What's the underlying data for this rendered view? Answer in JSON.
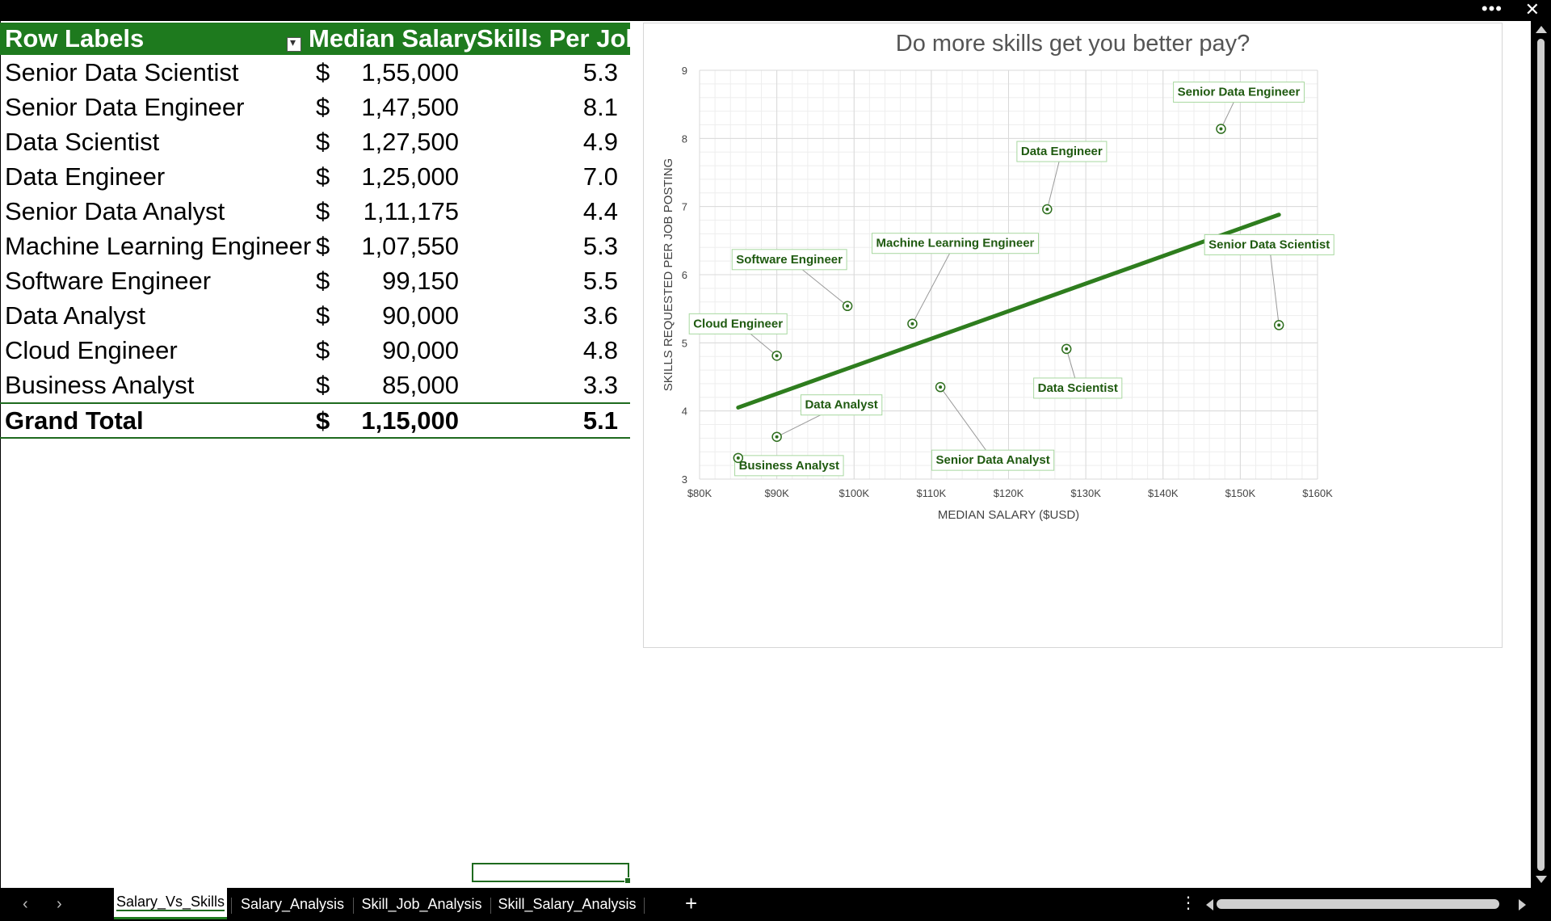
{
  "window": {
    "more_label": "•••",
    "close_label": "✕"
  },
  "pivot": {
    "headers": {
      "row_labels": "Row Labels",
      "median_salary": "Median Salary",
      "skills_per_job": "Skills Per Job"
    },
    "rows": [
      {
        "label": "Senior Data Scientist",
        "currency": "$",
        "salary": "1,55,000",
        "skills": "5.3"
      },
      {
        "label": "Senior Data Engineer",
        "currency": "$",
        "salary": "1,47,500",
        "skills": "8.1"
      },
      {
        "label": "Data Scientist",
        "currency": "$",
        "salary": "1,27,500",
        "skills": "4.9"
      },
      {
        "label": "Data Engineer",
        "currency": "$",
        "salary": "1,25,000",
        "skills": "7.0"
      },
      {
        "label": "Senior Data Analyst",
        "currency": "$",
        "salary": "1,11,175",
        "skills": "4.4"
      },
      {
        "label": "Machine Learning Engineer",
        "currency": "$",
        "salary": "1,07,550",
        "skills": "5.3"
      },
      {
        "label": "Software Engineer",
        "currency": "$",
        "salary": "99,150",
        "skills": "5.5"
      },
      {
        "label": "Data Analyst",
        "currency": "$",
        "salary": "90,000",
        "skills": "3.6"
      },
      {
        "label": "Cloud Engineer",
        "currency": "$",
        "salary": "90,000",
        "skills": "4.8"
      },
      {
        "label": "Business Analyst",
        "currency": "$",
        "salary": "85,000",
        "skills": "3.3"
      }
    ],
    "total": {
      "label": "Grand Total",
      "currency": "$",
      "salary": "1,15,000",
      "skills": "5.1"
    }
  },
  "chart_data": {
    "type": "scatter",
    "title": "Do more skills get you better pay?",
    "xlabel": "MEDIAN SALARY ($USD)",
    "ylabel": "SKILLS REQUESTED PER JOB POSTING",
    "xlim": [
      80000,
      160000
    ],
    "ylim": [
      3,
      9
    ],
    "x_ticks": [
      "$80K",
      "$90K",
      "$100K",
      "$110K",
      "$120K",
      "$130K",
      "$140K",
      "$150K",
      "$160K"
    ],
    "y_ticks": [
      "3",
      "4",
      "5",
      "6",
      "7",
      "8",
      "9"
    ],
    "grid": true,
    "trendline": {
      "x": [
        85000,
        155000
      ],
      "y": [
        4.05,
        6.88
      ]
    },
    "points": [
      {
        "label": "Senior Data Scientist",
        "x": 155000,
        "y": 5.26
      },
      {
        "label": "Senior Data Engineer",
        "x": 147500,
        "y": 8.14
      },
      {
        "label": "Data Scientist",
        "x": 127500,
        "y": 4.91
      },
      {
        "label": "Data Engineer",
        "x": 125000,
        "y": 6.96
      },
      {
        "label": "Senior Data Analyst",
        "x": 111175,
        "y": 4.35
      },
      {
        "label": "Machine Learning Engineer",
        "x": 107550,
        "y": 5.28
      },
      {
        "label": "Software Engineer",
        "x": 99150,
        "y": 5.54
      },
      {
        "label": "Data Analyst",
        "x": 90000,
        "y": 3.62
      },
      {
        "label": "Cloud Engineer",
        "x": 90000,
        "y": 4.81
      },
      {
        "label": "Business Analyst",
        "x": 85000,
        "y": 3.31
      }
    ],
    "colors": {
      "series": "#2e6e1e",
      "label_text": "#1f5a10",
      "label_border": "#a8d8a0",
      "trendline": "#2e7d1e"
    }
  },
  "tabs": [
    {
      "label": "Salary_Vs_Skills",
      "active": true
    },
    {
      "label": "Salary_Analysis",
      "active": false
    },
    {
      "label": "Skill_Job_Analysis",
      "active": false
    },
    {
      "label": "Skill_Salary_Analysis",
      "active": false
    }
  ],
  "tabbar": {
    "prev": "‹",
    "next": "›",
    "add": "+",
    "more": "⋮"
  }
}
